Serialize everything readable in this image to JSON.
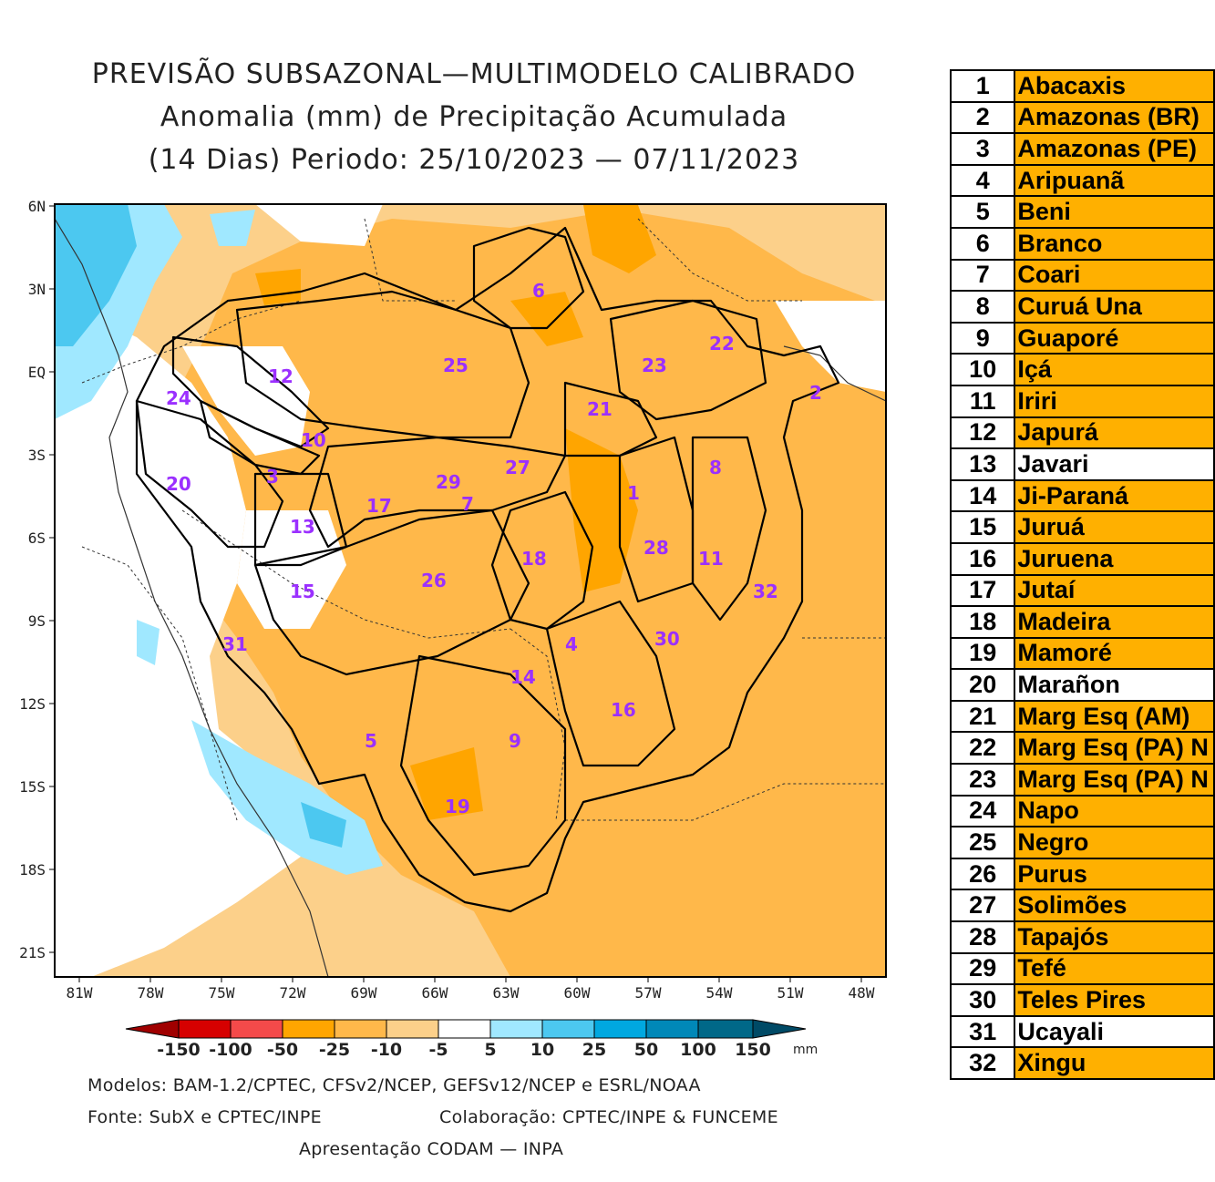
{
  "title": {
    "line1": "PREVISÃO SUBSAZONAL—MULTIMODELO CALIBRADO",
    "line2": "Anomalia (mm) de Precipitação Acumulada",
    "line3": "(14 Dias) Periodo: 25/10/2023 — 07/11/2023"
  },
  "map": {
    "lat_labels": [
      "6N",
      "3N",
      "EQ",
      "3S",
      "6S",
      "9S",
      "12S",
      "15S",
      "18S",
      "21S"
    ],
    "lon_labels": [
      "81W",
      "78W",
      "75W",
      "72W",
      "69W",
      "66W",
      "63W",
      "60W",
      "57W",
      "54W",
      "51W",
      "48W"
    ],
    "basin_labels": [
      "1",
      "2",
      "3",
      "4",
      "5",
      "6",
      "7",
      "8",
      "9",
      "10",
      "11",
      "12",
      "13",
      "14",
      "15",
      "16",
      "17",
      "18",
      "19",
      "20",
      "21",
      "22",
      "23",
      "24",
      "25",
      "26",
      "27",
      "28",
      "29",
      "30",
      "31",
      "32"
    ]
  },
  "colorbar": {
    "labels": [
      "-150",
      "-100",
      "-50",
      "-25",
      "-10",
      "-5",
      "5",
      "10",
      "25",
      "50",
      "100",
      "150"
    ],
    "unit": "mm",
    "colors": [
      "#d60000",
      "#f44a4a",
      "#ffa500",
      "#ffb84a",
      "#fcd08a",
      "#ffffff",
      "#a0e8ff",
      "#4cc8f0",
      "#00a8e0",
      "#0088b8",
      "#006888"
    ],
    "left_arrow_color": "#a00000",
    "right_arrow_color": "#004a66"
  },
  "footer": {
    "models": "Modelos: BAM-1.2/CPTEC, CFSv2/NCEP, GEFSv12/NCEP e ESRL/NOAA",
    "source": "Fonte: SubX e CPTEC/INPE",
    "collab": "Colaboração: CPTEC/INPE & FUNCEME",
    "presentation": "Apresentação CODAM — INPA"
  },
  "basins": [
    {
      "num": "1",
      "name": "Abacaxis",
      "highlight": true
    },
    {
      "num": "2",
      "name": "Amazonas (BR)",
      "highlight": true
    },
    {
      "num": "3",
      "name": "Amazonas (PE)",
      "highlight": true
    },
    {
      "num": "4",
      "name": "Aripuanã",
      "highlight": true
    },
    {
      "num": "5",
      "name": "Beni",
      "highlight": true
    },
    {
      "num": "6",
      "name": "Branco",
      "highlight": true
    },
    {
      "num": "7",
      "name": "Coari",
      "highlight": true
    },
    {
      "num": "8",
      "name": "Curuá Una",
      "highlight": true
    },
    {
      "num": "9",
      "name": "Guaporé",
      "highlight": true
    },
    {
      "num": "10",
      "name": "Içá",
      "highlight": true
    },
    {
      "num": "11",
      "name": "Iriri",
      "highlight": true
    },
    {
      "num": "12",
      "name": "Japurá",
      "highlight": true
    },
    {
      "num": "13",
      "name": "Javari",
      "highlight": false
    },
    {
      "num": "14",
      "name": "Ji-Paraná",
      "highlight": true
    },
    {
      "num": "15",
      "name": "Juruá",
      "highlight": true
    },
    {
      "num": "16",
      "name": "Juruena",
      "highlight": true
    },
    {
      "num": "17",
      "name": "Jutaí",
      "highlight": true
    },
    {
      "num": "18",
      "name": "Madeira",
      "highlight": true
    },
    {
      "num": "19",
      "name": "Mamoré",
      "highlight": true
    },
    {
      "num": "20",
      "name": "Marañon",
      "highlight": false
    },
    {
      "num": "21",
      "name": "Marg Esq (AM)",
      "highlight": true
    },
    {
      "num": "22",
      "name": "Marg Esq (PA) N",
      "highlight": true
    },
    {
      "num": "23",
      "name": "Marg Esq (PA) N",
      "highlight": true
    },
    {
      "num": "24",
      "name": "Napo",
      "highlight": true
    },
    {
      "num": "25",
      "name": "Negro",
      "highlight": true
    },
    {
      "num": "26",
      "name": "Purus",
      "highlight": true
    },
    {
      "num": "27",
      "name": "Solimões",
      "highlight": true
    },
    {
      "num": "28",
      "name": "Tapajós",
      "highlight": true
    },
    {
      "num": "29",
      "name": "Tefé",
      "highlight": true
    },
    {
      "num": "30",
      "name": "Teles Pires",
      "highlight": true
    },
    {
      "num": "31",
      "name": "Ucayali",
      "highlight": false
    },
    {
      "num": "32",
      "name": "Xingu",
      "highlight": true
    }
  ],
  "table_colors": {
    "highlight": "#ffb000",
    "plain": "#ffffff"
  }
}
